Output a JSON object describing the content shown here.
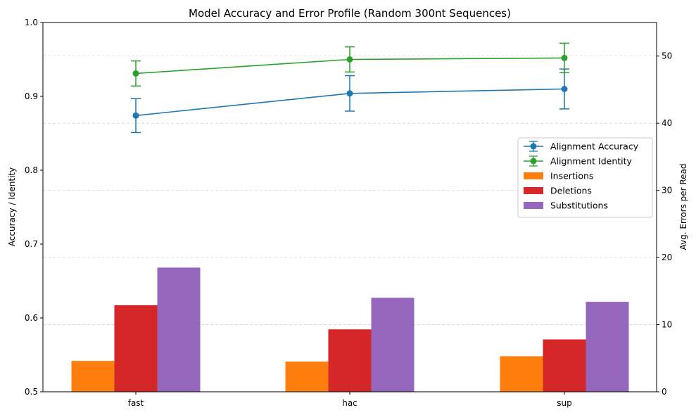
{
  "chart_data": {
    "type": "bar+line",
    "title": "Model Accuracy and Error Profile (Random 300nt Sequences)",
    "categories": [
      "fast",
      "hac",
      "sup"
    ],
    "left_axis": {
      "label": "Accuracy / Identity",
      "ylim": [
        0.5,
        1.0
      ],
      "ticks": [
        "0.5",
        "0.6",
        "0.7",
        "0.8",
        "0.9",
        "1.0"
      ]
    },
    "right_axis": {
      "label": "Avg. Errors per Read",
      "ylim": [
        0,
        55
      ],
      "ticks": [
        "0",
        "10",
        "20",
        "30",
        "40",
        "50"
      ]
    },
    "line_series": [
      {
        "name": "Alignment Accuracy",
        "color": "#1f77b4",
        "values": [
          0.874,
          0.904,
          0.91
        ],
        "errors": [
          0.023,
          0.024,
          0.027
        ]
      },
      {
        "name": "Alignment Identity",
        "color": "#2ca02c",
        "values": [
          0.931,
          0.95,
          0.952
        ],
        "errors": [
          0.017,
          0.017,
          0.02
        ]
      }
    ],
    "bar_series": [
      {
        "name": "Insertions",
        "color": "#ff7f0e",
        "values": [
          4.6,
          4.5,
          5.3
        ]
      },
      {
        "name": "Deletions",
        "color": "#d62728",
        "values": [
          12.9,
          9.3,
          7.8
        ]
      },
      {
        "name": "Substitutions",
        "color": "#9467bd",
        "values": [
          18.5,
          14.0,
          13.4
        ]
      }
    ],
    "grid": "horizontal dashed (right axis)",
    "legend_position": "center-right"
  }
}
